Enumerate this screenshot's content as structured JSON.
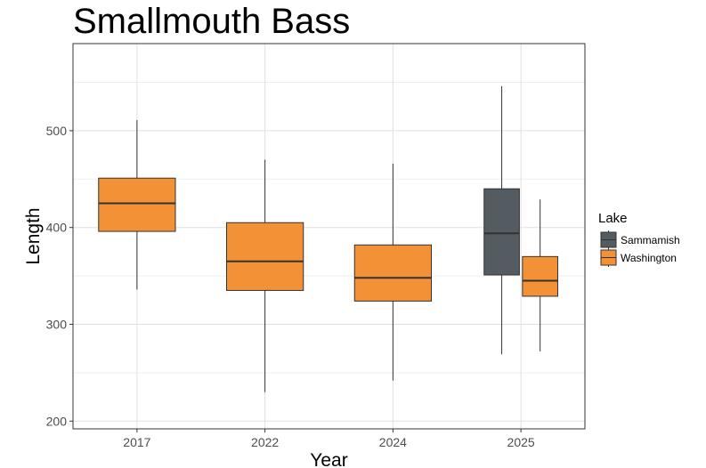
{
  "chart_data": {
    "type": "boxplot",
    "title": "Smallmouth Bass",
    "xlabel": "Year",
    "ylabel": "Length",
    "ylim": [
      192,
      590
    ],
    "yticks": [
      200,
      300,
      400,
      500
    ],
    "categories": [
      "2017",
      "2022",
      "2024",
      "2025"
    ],
    "grid": true,
    "legend": {
      "title": "Lake",
      "position": "right"
    },
    "series": [
      {
        "name": "Sammamish",
        "color": "#545b61",
        "boxes": [
          {
            "category": "2025",
            "min": 269,
            "q1": 351,
            "median": 394,
            "q3": 440,
            "max": 546
          }
        ]
      },
      {
        "name": "Washington",
        "color": "#f39136",
        "boxes": [
          {
            "category": "2017",
            "min": 336,
            "q1": 396,
            "median": 425,
            "q3": 451,
            "max": 511
          },
          {
            "category": "2022",
            "min": 230,
            "q1": 335,
            "median": 365,
            "q3": 405,
            "max": 470
          },
          {
            "category": "2024",
            "min": 242,
            "q1": 324,
            "median": 348,
            "q3": 382,
            "max": 466
          },
          {
            "category": "2025",
            "min": 272,
            "q1": 329,
            "median": 345,
            "q3": 370,
            "max": 429
          }
        ]
      }
    ]
  }
}
